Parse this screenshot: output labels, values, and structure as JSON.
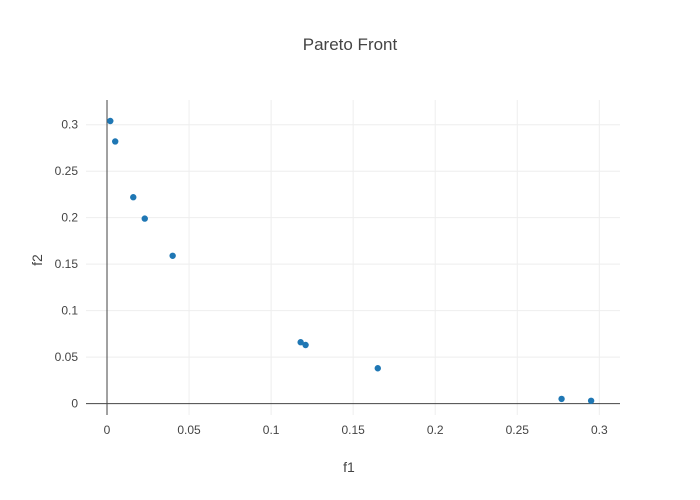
{
  "chart_data": {
    "type": "scatter",
    "title": "Pareto Front",
    "xlabel": "f1",
    "ylabel": "f2",
    "xlim": [
      -0.0128,
      0.3126
    ],
    "ylim": [
      -0.0123,
      0.3266
    ],
    "xticks": [
      0,
      0.05,
      0.1,
      0.15,
      0.2,
      0.25,
      0.3
    ],
    "xtick_labels": [
      "0",
      "0.05",
      "0.1",
      "0.15",
      "0.2",
      "0.25",
      "0.3"
    ],
    "yticks": [
      0,
      0.05,
      0.1,
      0.15,
      0.2,
      0.25,
      0.3
    ],
    "ytick_labels": [
      "0",
      "0.05",
      "0.1",
      "0.15",
      "0.2",
      "0.25",
      "0.3"
    ],
    "grid": true,
    "marker_color": "#1f77b4",
    "points": [
      {
        "x": 0.002,
        "y": 0.304
      },
      {
        "x": 0.005,
        "y": 0.282
      },
      {
        "x": 0.016,
        "y": 0.222
      },
      {
        "x": 0.023,
        "y": 0.199
      },
      {
        "x": 0.04,
        "y": 0.159
      },
      {
        "x": 0.118,
        "y": 0.066
      },
      {
        "x": 0.121,
        "y": 0.063
      },
      {
        "x": 0.165,
        "y": 0.038
      },
      {
        "x": 0.277,
        "y": 0.005
      },
      {
        "x": 0.295,
        "y": 0.003
      }
    ]
  }
}
